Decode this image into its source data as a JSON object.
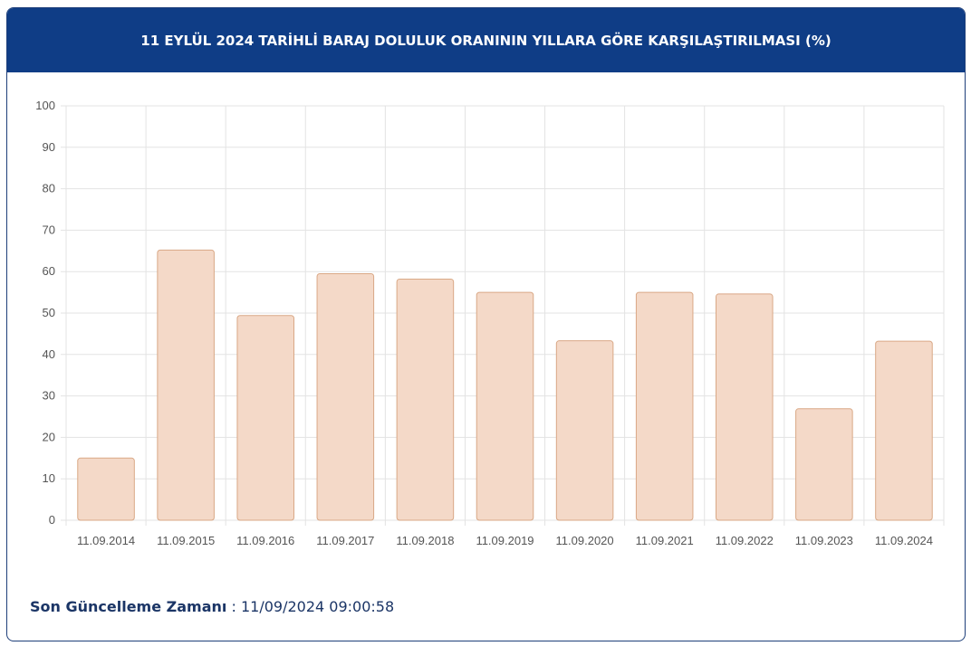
{
  "header": {
    "title": "11 EYLÜL 2024 TARİHLİ BARAJ DOLULUK ORANININ YILLARA GÖRE KARŞILAŞTIRILMASI (%)"
  },
  "footer": {
    "label": "Son Güncelleme Zamanı",
    "separator": " : ",
    "value": "11/09/2024 09:00:58"
  },
  "colors": {
    "header_bg": "#0f3d86",
    "bar_fill": "#f4d9c8",
    "bar_stroke": "#d9a886",
    "grid": "#e3e3e3",
    "footer_text": "#1b3566"
  },
  "chart_data": {
    "type": "bar",
    "title": "11 EYLÜL 2024 TARİHLİ BARAJ DOLULUK ORANININ YILLARA GÖRE KARŞILAŞTIRILMASI (%)",
    "xlabel": "",
    "ylabel": "",
    "categories": [
      "11.09.2014",
      "11.09.2015",
      "11.09.2016",
      "11.09.2017",
      "11.09.2018",
      "11.09.2019",
      "11.09.2020",
      "11.09.2021",
      "11.09.2022",
      "11.09.2023",
      "11.09.2024"
    ],
    "values": [
      15.0,
      65.2,
      49.4,
      59.5,
      58.2,
      55.0,
      43.3,
      55.0,
      54.6,
      26.9,
      43.2
    ],
    "ylim": [
      0,
      100
    ],
    "yticks": [
      "0",
      "10",
      "20",
      "30",
      "40",
      "50",
      "60",
      "70",
      "80",
      "90",
      "100"
    ],
    "grid": true,
    "legend": "none"
  }
}
